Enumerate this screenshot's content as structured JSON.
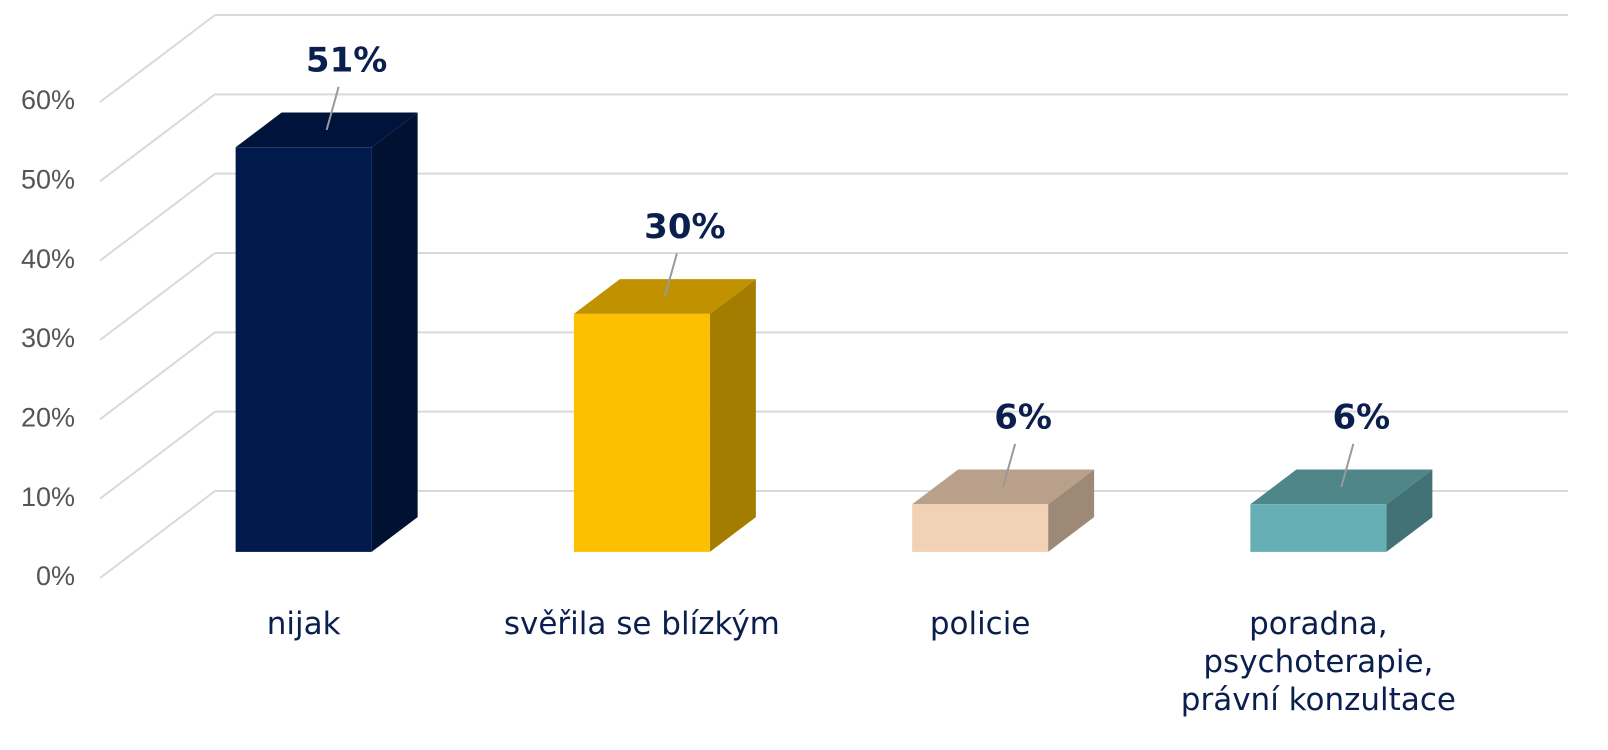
{
  "chart_data": {
    "type": "bar3d",
    "categories": [
      "nijak",
      "svěřila se blízkým",
      "policie",
      "poradna, psychoterapie, právní konzultace"
    ],
    "values": [
      51,
      30,
      6,
      6
    ],
    "value_labels": [
      "51%",
      "30%",
      "6%",
      "6%"
    ],
    "colors": [
      "#001a4d",
      "#fdc000",
      "#f2d2b5",
      "#66b0b5"
    ],
    "ylim": [
      0,
      60
    ],
    "yticks": [
      {
        "value": 0,
        "label": "0%"
      },
      {
        "value": 10,
        "label": "10%"
      },
      {
        "value": 20,
        "label": "20%"
      },
      {
        "value": 30,
        "label": "30%"
      },
      {
        "value": 40,
        "label": "40%"
      },
      {
        "value": 50,
        "label": "50%"
      },
      {
        "value": 60,
        "label": "60%"
      }
    ],
    "grid": true
  }
}
